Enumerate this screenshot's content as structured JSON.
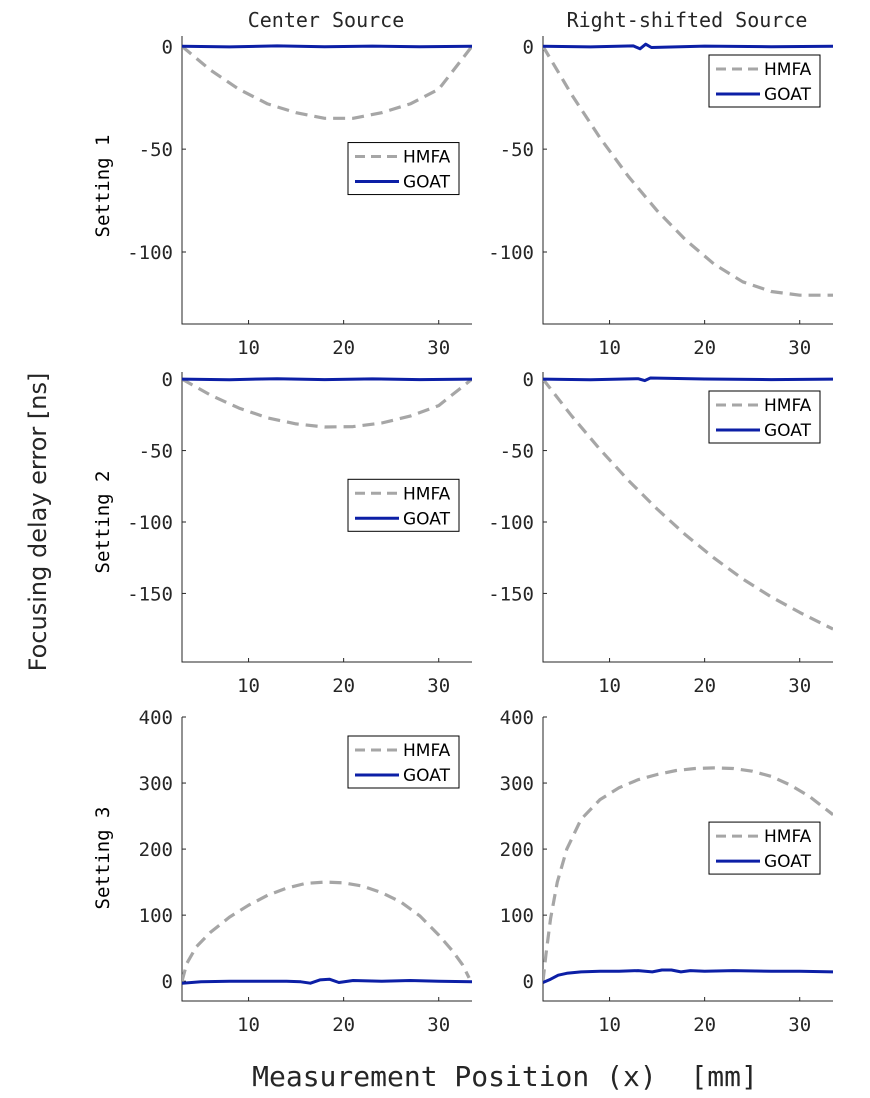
{
  "figure": {
    "col_titles": [
      "Center Source",
      "Right-shifted Source"
    ],
    "row_labels": [
      "Setting 1",
      "Setting 2",
      "Setting 3"
    ],
    "ylabel": "Focusing delay error [ns]",
    "xlabel": "Measurement Position (x)  [mm]",
    "colors": {
      "hmfa": "#a6a6a6",
      "goat": "#0c1fa6",
      "axis": "#262626"
    }
  },
  "chart_data": [
    {
      "type": "line",
      "id": "s1-center",
      "title": "Center Source",
      "row_label": "Setting 1",
      "xlim": [
        3,
        33.5
      ],
      "ylim": [
        -135,
        5
      ],
      "xticks": [
        10,
        20,
        30
      ],
      "yticks": [
        0,
        -50,
        -100
      ],
      "legend": "center-right",
      "series": [
        {
          "name": "HMFA",
          "style": "dashed",
          "x": [
            3,
            6,
            9,
            12,
            15,
            18,
            21,
            24,
            27,
            30,
            33.5
          ],
          "y": [
            0,
            -11.6,
            -20.9,
            -28.0,
            -32.3,
            -35.0,
            -35.0,
            -32.3,
            -28.0,
            -20.9,
            0
          ]
        },
        {
          "name": "GOAT",
          "style": "solid",
          "x": [
            3,
            8,
            13,
            18,
            23,
            28,
            33.5
          ],
          "y": [
            0,
            -0.3,
            0.2,
            -0.2,
            0.1,
            -0.2,
            0
          ]
        }
      ]
    },
    {
      "type": "line",
      "id": "s1-right",
      "title": "Right-shifted Source",
      "row_label": "Setting 1",
      "xlim": [
        3,
        33.5
      ],
      "ylim": [
        -135,
        5
      ],
      "xticks": [
        10,
        20,
        30
      ],
      "yticks": [
        0,
        -50,
        -100
      ],
      "legend": "top-right",
      "series": [
        {
          "name": "HMFA",
          "style": "dashed",
          "x": [
            3,
            6,
            9,
            12,
            15,
            18,
            21,
            24,
            27,
            30,
            33.5
          ],
          "y": [
            0,
            -23.4,
            -44.5,
            -63.4,
            -79.9,
            -94.1,
            -105.9,
            -114.5,
            -119.2,
            -121.0,
            -121.0
          ]
        },
        {
          "name": "GOAT",
          "style": "solid",
          "x": [
            3,
            8,
            12.5,
            13.2,
            13.8,
            14.4,
            20,
            27,
            33.5
          ],
          "y": [
            0,
            -0.3,
            0.2,
            -1.2,
            1.0,
            -0.6,
            0.1,
            -0.2,
            0
          ]
        }
      ]
    },
    {
      "type": "line",
      "id": "s2-center",
      "title": "Center Source",
      "row_label": "Setting 2",
      "xlim": [
        3,
        33.5
      ],
      "ylim": [
        -198,
        5
      ],
      "xticks": [
        10,
        20,
        30
      ],
      "yticks": [
        0,
        -50,
        -100,
        -150
      ],
      "legend": "center-right",
      "series": [
        {
          "name": "HMFA",
          "style": "dashed",
          "x": [
            3,
            6,
            9,
            12,
            15,
            18,
            21,
            24,
            27,
            30,
            33.5
          ],
          "y": [
            0,
            -11.2,
            -20.3,
            -27.1,
            -31.3,
            -33.5,
            -33.2,
            -30.7,
            -25.9,
            -18.5,
            0
          ]
        },
        {
          "name": "GOAT",
          "style": "solid",
          "x": [
            3,
            8,
            13,
            18,
            23,
            28,
            33.5
          ],
          "y": [
            0,
            -0.4,
            0.3,
            -0.3,
            0.2,
            -0.3,
            0
          ]
        }
      ]
    },
    {
      "type": "line",
      "id": "s2-right",
      "title": "Right-shifted Source",
      "row_label": "Setting 2",
      "xlim": [
        3,
        33.5
      ],
      "ylim": [
        -198,
        5
      ],
      "xticks": [
        10,
        20,
        30
      ],
      "yticks": [
        0,
        -50,
        -100,
        -150
      ],
      "legend": "top-right",
      "series": [
        {
          "name": "HMFA",
          "style": "dashed",
          "x": [
            3,
            6,
            9,
            12,
            15,
            18,
            21,
            24,
            27,
            30,
            33.5
          ],
          "y": [
            0,
            -25.6,
            -49.2,
            -71.0,
            -90.9,
            -109.0,
            -125.3,
            -139.8,
            -152.4,
            -163.3,
            -175.0
          ]
        },
        {
          "name": "GOAT",
          "style": "solid",
          "x": [
            3,
            8,
            13,
            13.7,
            14.3,
            20,
            27,
            33.5
          ],
          "y": [
            0,
            -0.4,
            0.3,
            -1.0,
            0.8,
            0.1,
            -0.3,
            0
          ]
        }
      ]
    },
    {
      "type": "line",
      "id": "s3-center",
      "title": "Center Source",
      "row_label": "Setting 3",
      "xlim": [
        3,
        33.5
      ],
      "ylim": [
        -30,
        400
      ],
      "xticks": [
        10,
        20,
        30
      ],
      "yticks": [
        0,
        100,
        200,
        300,
        400
      ],
      "legend": "top-right",
      "series": [
        {
          "name": "HMFA",
          "style": "dashed",
          "x": [
            3,
            3.5,
            4.5,
            6,
            8,
            10,
            12,
            14,
            16,
            18,
            20,
            22,
            24,
            26,
            28,
            30,
            31.5,
            32.5,
            33.2
          ],
          "y": [
            0,
            27,
            52,
            74,
            97,
            115,
            130,
            141,
            148,
            150,
            149,
            144,
            134,
            120,
            99,
            70,
            45,
            25,
            5
          ]
        },
        {
          "name": "GOAT",
          "style": "solid",
          "x": [
            3,
            5,
            8,
            11,
            14,
            15.5,
            16.5,
            17.5,
            18.5,
            19.5,
            21,
            24,
            27,
            30,
            33.5
          ],
          "y": [
            -3,
            -1,
            0,
            0,
            0,
            -1,
            -3,
            2,
            3,
            -2,
            1,
            0,
            1,
            0,
            -1
          ]
        }
      ]
    },
    {
      "type": "line",
      "id": "s3-right",
      "title": "Right-shifted Source",
      "row_label": "Setting 3",
      "xlim": [
        3,
        33.5
      ],
      "ylim": [
        -30,
        400
      ],
      "xticks": [
        10,
        20,
        30
      ],
      "yticks": [
        0,
        100,
        200,
        300,
        400
      ],
      "legend": "center-right",
      "series": [
        {
          "name": "HMFA",
          "style": "dashed",
          "x": [
            3,
            3.3,
            3.8,
            4.5,
            5.5,
            7,
            9,
            11,
            13,
            15,
            17,
            19,
            21,
            23,
            25,
            27,
            29,
            31,
            33.5
          ],
          "y": [
            0,
            40,
            95,
            150,
            200,
            245,
            275,
            293,
            305,
            313,
            319,
            322,
            323,
            322,
            318,
            310,
            297,
            280,
            252
          ]
        },
        {
          "name": "GOAT",
          "style": "solid",
          "x": [
            3,
            3.8,
            4.6,
            5.5,
            7,
            9,
            11,
            13,
            14.5,
            15.5,
            16.5,
            17.5,
            18.5,
            20,
            23,
            27,
            30,
            33.5
          ],
          "y": [
            -2,
            3,
            9,
            12,
            14,
            15,
            15,
            16,
            14,
            17,
            17,
            14,
            16,
            15,
            16,
            15,
            15,
            14
          ]
        }
      ]
    }
  ]
}
